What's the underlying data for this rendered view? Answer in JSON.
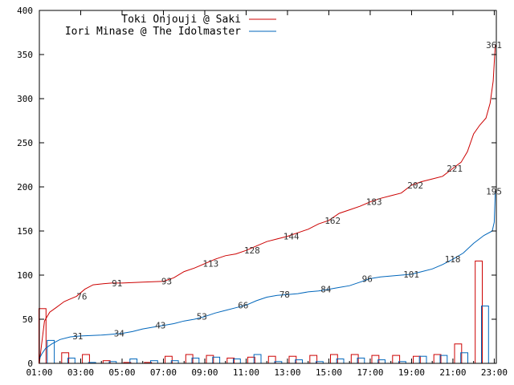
{
  "chart_data": {
    "type": "line",
    "xlim": [
      0,
      22.1
    ],
    "ylim": [
      0,
      400
    ],
    "x_ticks": [
      {
        "value": 0,
        "label": "01:00"
      },
      {
        "value": 2,
        "label": "03:00"
      },
      {
        "value": 4,
        "label": "05:00"
      },
      {
        "value": 6,
        "label": "07:00"
      },
      {
        "value": 8,
        "label": "09:00"
      },
      {
        "value": 10,
        "label": "11:00"
      },
      {
        "value": 12,
        "label": "13:00"
      },
      {
        "value": 14,
        "label": "15:00"
      },
      {
        "value": 16,
        "label": "17:00"
      },
      {
        "value": 18,
        "label": "19:00"
      },
      {
        "value": 20,
        "label": "21:00"
      },
      {
        "value": 22,
        "label": "23:00"
      }
    ],
    "y_ticks": [
      {
        "value": 0,
        "label": "0"
      },
      {
        "value": 50,
        "label": "50"
      },
      {
        "value": 100,
        "label": "100"
      },
      {
        "value": 150,
        "label": "150"
      },
      {
        "value": 200,
        "label": "200"
      },
      {
        "value": 250,
        "label": "250"
      },
      {
        "value": 300,
        "label": "300"
      },
      {
        "value": 350,
        "label": "350"
      },
      {
        "value": 400,
        "label": "400"
      }
    ],
    "legend_position": "top-left",
    "series": [
      {
        "name": "Toki Onjouji @ Saki",
        "color": "#cc0000",
        "cumulative": [
          {
            "x": 0,
            "y": 0
          },
          {
            "x": 0.1,
            "y": 20
          },
          {
            "x": 0.25,
            "y": 48
          },
          {
            "x": 0.5,
            "y": 58
          },
          {
            "x": 0.8,
            "y": 63
          },
          {
            "x": 1.2,
            "y": 70
          },
          {
            "x": 1.5,
            "y": 73
          },
          {
            "x": 1.8,
            "y": 76
          },
          {
            "x": 2.2,
            "y": 84
          },
          {
            "x": 2.6,
            "y": 89
          },
          {
            "x": 3,
            "y": 90
          },
          {
            "x": 3.5,
            "y": 91
          },
          {
            "x": 4,
            "y": 91
          },
          {
            "x": 5,
            "y": 92
          },
          {
            "x": 6,
            "y": 93
          },
          {
            "x": 6.5,
            "y": 97
          },
          {
            "x": 7,
            "y": 104
          },
          {
            "x": 7.5,
            "y": 108
          },
          {
            "x": 8,
            "y": 113
          },
          {
            "x": 8.5,
            "y": 118
          },
          {
            "x": 9,
            "y": 122
          },
          {
            "x": 9.5,
            "y": 124
          },
          {
            "x": 10,
            "y": 128
          },
          {
            "x": 10.5,
            "y": 133
          },
          {
            "x": 11,
            "y": 138
          },
          {
            "x": 11.5,
            "y": 141
          },
          {
            "x": 12,
            "y": 144
          },
          {
            "x": 12.5,
            "y": 148
          },
          {
            "x": 13,
            "y": 152
          },
          {
            "x": 13.5,
            "y": 158
          },
          {
            "x": 14,
            "y": 162
          },
          {
            "x": 14.5,
            "y": 170
          },
          {
            "x": 15,
            "y": 174
          },
          {
            "x": 15.5,
            "y": 178
          },
          {
            "x": 16,
            "y": 183
          },
          {
            "x": 16.5,
            "y": 187
          },
          {
            "x": 17,
            "y": 190
          },
          {
            "x": 17.5,
            "y": 193
          },
          {
            "x": 18,
            "y": 202
          },
          {
            "x": 18.5,
            "y": 206
          },
          {
            "x": 19,
            "y": 209
          },
          {
            "x": 19.5,
            "y": 212
          },
          {
            "x": 20,
            "y": 221
          },
          {
            "x": 20.4,
            "y": 228
          },
          {
            "x": 20.7,
            "y": 240
          },
          {
            "x": 21,
            "y": 260
          },
          {
            "x": 21.3,
            "y": 270
          },
          {
            "x": 21.6,
            "y": 278
          },
          {
            "x": 21.8,
            "y": 295
          },
          {
            "x": 21.95,
            "y": 320
          },
          {
            "x": 22.05,
            "y": 361
          }
        ],
        "value_labels": [
          {
            "x": 1.8,
            "y": 76,
            "label": "76"
          },
          {
            "x": 3.5,
            "y": 91,
            "label": "91"
          },
          {
            "x": 5.9,
            "y": 93,
            "label": "93"
          },
          {
            "x": 7.9,
            "y": 113,
            "label": "113"
          },
          {
            "x": 9.9,
            "y": 128,
            "label": "128"
          },
          {
            "x": 11.8,
            "y": 144,
            "label": "144"
          },
          {
            "x": 13.8,
            "y": 162,
            "label": "162"
          },
          {
            "x": 15.8,
            "y": 183,
            "label": "183"
          },
          {
            "x": 17.8,
            "y": 202,
            "label": "202"
          },
          {
            "x": 19.7,
            "y": 221,
            "label": "221"
          },
          {
            "x": 21.6,
            "y": 361,
            "label": "361"
          }
        ],
        "hourly": [
          {
            "x": 0.15,
            "v": 62
          },
          {
            "x": 1.25,
            "v": 12
          },
          {
            "x": 2.25,
            "v": 10
          },
          {
            "x": 3.25,
            "v": 3
          },
          {
            "x": 4.25,
            "v": 1
          },
          {
            "x": 5.25,
            "v": 1
          },
          {
            "x": 6.25,
            "v": 8
          },
          {
            "x": 7.25,
            "v": 10
          },
          {
            "x": 8.25,
            "v": 9
          },
          {
            "x": 9.25,
            "v": 6
          },
          {
            "x": 10.25,
            "v": 7
          },
          {
            "x": 11.25,
            "v": 8
          },
          {
            "x": 12.25,
            "v": 8
          },
          {
            "x": 13.25,
            "v": 9
          },
          {
            "x": 14.25,
            "v": 10
          },
          {
            "x": 15.25,
            "v": 10
          },
          {
            "x": 16.25,
            "v": 9
          },
          {
            "x": 17.25,
            "v": 9
          },
          {
            "x": 18.25,
            "v": 8
          },
          {
            "x": 19.25,
            "v": 10
          },
          {
            "x": 20.25,
            "v": 22
          },
          {
            "x": 21.25,
            "v": 116
          }
        ]
      },
      {
        "name": "Iori Minase @ The Idolmaster",
        "color": "#0066bb",
        "cumulative": [
          {
            "x": 0,
            "y": 5
          },
          {
            "x": 0.1,
            "y": 10
          },
          {
            "x": 0.3,
            "y": 17
          },
          {
            "x": 0.6,
            "y": 22
          },
          {
            "x": 1,
            "y": 27
          },
          {
            "x": 1.5,
            "y": 30
          },
          {
            "x": 2,
            "y": 31
          },
          {
            "x": 3,
            "y": 32
          },
          {
            "x": 3.5,
            "y": 33
          },
          {
            "x": 4,
            "y": 34
          },
          {
            "x": 4.5,
            "y": 36
          },
          {
            "x": 5,
            "y": 39
          },
          {
            "x": 5.5,
            "y": 41
          },
          {
            "x": 6,
            "y": 43
          },
          {
            "x": 6.5,
            "y": 45
          },
          {
            "x": 7,
            "y": 48
          },
          {
            "x": 7.5,
            "y": 50
          },
          {
            "x": 8,
            "y": 53
          },
          {
            "x": 8.5,
            "y": 57
          },
          {
            "x": 9,
            "y": 60
          },
          {
            "x": 9.5,
            "y": 63
          },
          {
            "x": 10,
            "y": 66
          },
          {
            "x": 10.5,
            "y": 71
          },
          {
            "x": 11,
            "y": 75
          },
          {
            "x": 11.5,
            "y": 77
          },
          {
            "x": 12,
            "y": 78
          },
          {
            "x": 12.5,
            "y": 79
          },
          {
            "x": 13,
            "y": 81
          },
          {
            "x": 13.5,
            "y": 82
          },
          {
            "x": 14,
            "y": 84
          },
          {
            "x": 14.5,
            "y": 86
          },
          {
            "x": 15,
            "y": 88
          },
          {
            "x": 15.5,
            "y": 92
          },
          {
            "x": 16,
            "y": 96
          },
          {
            "x": 16.5,
            "y": 98
          },
          {
            "x": 17,
            "y": 99
          },
          {
            "x": 17.5,
            "y": 100
          },
          {
            "x": 18,
            "y": 101
          },
          {
            "x": 18.5,
            "y": 104
          },
          {
            "x": 19,
            "y": 107
          },
          {
            "x": 19.5,
            "y": 112
          },
          {
            "x": 20,
            "y": 118
          },
          {
            "x": 20.5,
            "y": 125
          },
          {
            "x": 21,
            "y": 136
          },
          {
            "x": 21.5,
            "y": 145
          },
          {
            "x": 21.9,
            "y": 150
          },
          {
            "x": 22,
            "y": 160
          },
          {
            "x": 22.05,
            "y": 195
          }
        ],
        "value_labels": [
          {
            "x": 1.6,
            "y": 31,
            "label": "31"
          },
          {
            "x": 3.6,
            "y": 34,
            "label": "34"
          },
          {
            "x": 5.6,
            "y": 43,
            "label": "43"
          },
          {
            "x": 7.6,
            "y": 53,
            "label": "53"
          },
          {
            "x": 9.6,
            "y": 66,
            "label": "66"
          },
          {
            "x": 11.6,
            "y": 78,
            "label": "78"
          },
          {
            "x": 13.6,
            "y": 84,
            "label": "84"
          },
          {
            "x": 15.6,
            "y": 96,
            "label": "96"
          },
          {
            "x": 17.6,
            "y": 101,
            "label": "101"
          },
          {
            "x": 19.6,
            "y": 118,
            "label": "118"
          },
          {
            "x": 21.6,
            "y": 195,
            "label": "195"
          }
        ],
        "hourly": [
          {
            "x": 0.55,
            "v": 26
          },
          {
            "x": 1.55,
            "v": 6
          },
          {
            "x": 2.55,
            "v": 1
          },
          {
            "x": 3.55,
            "v": 2
          },
          {
            "x": 4.55,
            "v": 5
          },
          {
            "x": 5.55,
            "v": 3
          },
          {
            "x": 6.55,
            "v": 3
          },
          {
            "x": 7.55,
            "v": 6
          },
          {
            "x": 8.55,
            "v": 7
          },
          {
            "x": 9.55,
            "v": 5
          },
          {
            "x": 10.55,
            "v": 10
          },
          {
            "x": 11.55,
            "v": 2
          },
          {
            "x": 12.55,
            "v": 4
          },
          {
            "x": 13.55,
            "v": 2
          },
          {
            "x": 14.55,
            "v": 5
          },
          {
            "x": 15.55,
            "v": 6
          },
          {
            "x": 16.55,
            "v": 4
          },
          {
            "x": 17.55,
            "v": 2
          },
          {
            "x": 18.55,
            "v": 8
          },
          {
            "x": 19.55,
            "v": 9
          },
          {
            "x": 20.55,
            "v": 12
          },
          {
            "x": 21.55,
            "v": 65
          }
        ]
      }
    ]
  }
}
